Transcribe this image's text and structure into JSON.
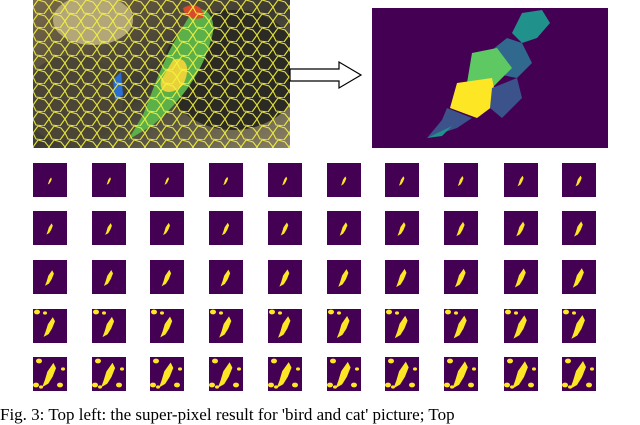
{
  "figure": {
    "caption": "Fig. 3: Top left: the super-pixel result for 'bird and cat' picture; Top",
    "panels": [
      {
        "name": "superpixel-result",
        "description_visible": false
      },
      {
        "name": "segmentation-map",
        "description_visible": false
      }
    ],
    "mask_grid": {
      "rows": 5,
      "cols": 10
    },
    "colors": {
      "background_purple": "#440154",
      "mask_yellow": "#fde725",
      "seg_teal": "#21918c",
      "seg_green": "#5ec962",
      "seg_blue": "#3b528b",
      "seg_navy": "#31688e",
      "superpixel_lines": "#f5f53a"
    }
  }
}
